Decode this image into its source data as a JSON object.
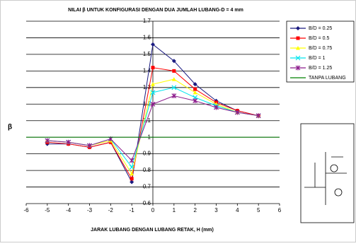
{
  "chart_data": {
    "type": "line",
    "title": "NILAI β UNTUK KONFIGURASI DENGAN DUA JUMLAH LUBANG-D = 4 mm",
    "x_label": "JARAK LUBANG DENGAN LUBANG RETAK, H (mm)",
    "y_label": "β",
    "x": [
      -5,
      -4,
      -3,
      -2,
      -1,
      0,
      1,
      2,
      3,
      4,
      5
    ],
    "series": [
      {
        "name": "B/D = 0.25",
        "color": "#1a1a80",
        "marker": "diamond",
        "values": [
          0.96,
          0.96,
          0.94,
          0.97,
          0.73,
          1.56,
          1.46,
          1.32,
          1.22,
          1.16,
          1.13
        ]
      },
      {
        "name": "B/D = 0.5",
        "color": "#ff0000",
        "marker": "square",
        "values": [
          0.97,
          0.96,
          0.94,
          0.97,
          0.75,
          1.42,
          1.4,
          1.29,
          1.21,
          1.16,
          1.13
        ]
      },
      {
        "name": "B/D = 0.75",
        "color": "#ffff00",
        "marker": "triangle",
        "values": [
          0.98,
          0.97,
          0.95,
          0.98,
          0.78,
          1.32,
          1.35,
          1.27,
          1.2,
          1.15,
          1.13
        ]
      },
      {
        "name": "B/D = 1",
        "color": "#00e5ee",
        "marker": "cross",
        "values": [
          0.98,
          0.97,
          0.95,
          0.99,
          0.82,
          1.27,
          1.3,
          1.24,
          1.19,
          1.15,
          1.13
        ]
      },
      {
        "name": "B/D = 1.25",
        "color": "#8b1a8b",
        "marker": "star",
        "values": [
          0.98,
          0.97,
          0.95,
          0.99,
          0.86,
          1.2,
          1.25,
          1.22,
          1.18,
          1.15,
          1.13
        ]
      },
      {
        "name": "TANPA LUBANG",
        "color": "#008000",
        "marker": "none",
        "x": [
          -6,
          6
        ],
        "values": [
          1,
          1
        ]
      }
    ],
    "xlim": [
      -6,
      6
    ],
    "xticks": [
      -6,
      -5,
      -4,
      -3,
      -2,
      -1,
      0,
      1,
      2,
      3,
      4,
      5,
      6
    ],
    "ylim": [
      0.6,
      1.7
    ],
    "yticks": [
      0.6,
      0.7,
      0.8,
      0.9,
      1,
      1.1,
      1.2,
      1.3,
      1.4,
      1.5,
      1.6,
      1.7
    ],
    "grid": true,
    "legend": "right"
  }
}
